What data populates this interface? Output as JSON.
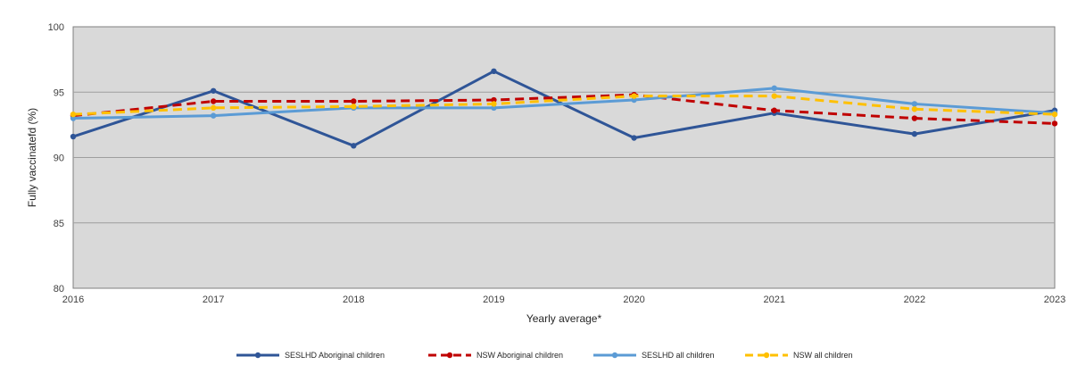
{
  "chart_data": {
    "type": "line",
    "title": "",
    "xlabel": "Yearly average*",
    "ylabel": "Fully vaccinatefd (%)",
    "x": [
      "2016",
      "2017",
      "2018",
      "2019",
      "2020",
      "2021",
      "2022",
      "2023"
    ],
    "ylim": [
      80,
      100
    ],
    "yticks": [
      "80",
      "85",
      "90",
      "95",
      "100"
    ],
    "grid": true,
    "legend": "bottom",
    "series": [
      {
        "name": "SESLHD Aboriginal children",
        "values": [
          91.6,
          95.1,
          90.9,
          96.6,
          91.5,
          93.4,
          91.8,
          93.6
        ],
        "color": "#2f5597",
        "dash": "solid",
        "marker": "circle"
      },
      {
        "name": "NSW Aboriginal children",
        "values": [
          93.2,
          94.3,
          94.3,
          94.4,
          94.8,
          93.6,
          93.0,
          92.6
        ],
        "color": "#c00000",
        "dash": "dash",
        "marker": "circle"
      },
      {
        "name": "SESLHD all children",
        "values": [
          93.0,
          93.2,
          93.8,
          93.8,
          94.4,
          95.3,
          94.1,
          93.4
        ],
        "color": "#5b9bd5",
        "dash": "solid",
        "marker": "circle"
      },
      {
        "name": "NSW all children",
        "values": [
          93.3,
          93.8,
          93.9,
          94.1,
          94.7,
          94.7,
          93.7,
          93.3
        ],
        "color": "#ffc000",
        "dash": "dash",
        "marker": "circle"
      }
    ],
    "plot_bg": "#d9d9d9",
    "grid_color": "#ffffff"
  }
}
